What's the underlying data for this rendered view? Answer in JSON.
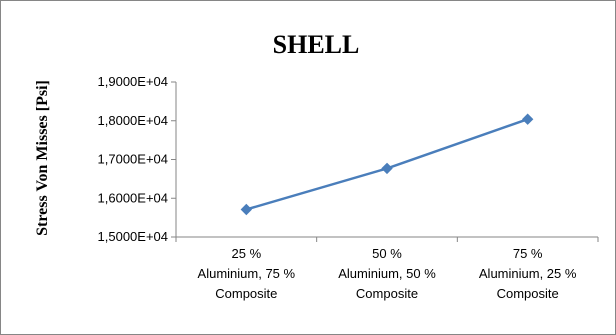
{
  "chart_data": {
    "type": "line",
    "title": "SHELL",
    "xlabel": "",
    "ylabel": "Stress Von Misses [Psi]",
    "categories": [
      [
        "25 %",
        "Aluminium, 75 %",
        "Composite"
      ],
      [
        "50 %",
        "Aluminium, 50 %",
        "Composite"
      ],
      [
        "75 %",
        "Aluminium, 25 %",
        "Composite"
      ]
    ],
    "series": [
      {
        "name": "",
        "values": [
          15710,
          16770,
          18040
        ],
        "color": "#4a7ebb",
        "marker": "diamond"
      }
    ],
    "ylim": [
      15000,
      19000
    ],
    "yticks": [
      15000,
      16000,
      17000,
      18000,
      19000
    ],
    "ytick_labels": [
      "1,5000E+04",
      "1,6000E+04",
      "1,7000E+04",
      "1,8000E+04",
      "1,9000E+04"
    ],
    "grid": false,
    "legend": "none"
  }
}
